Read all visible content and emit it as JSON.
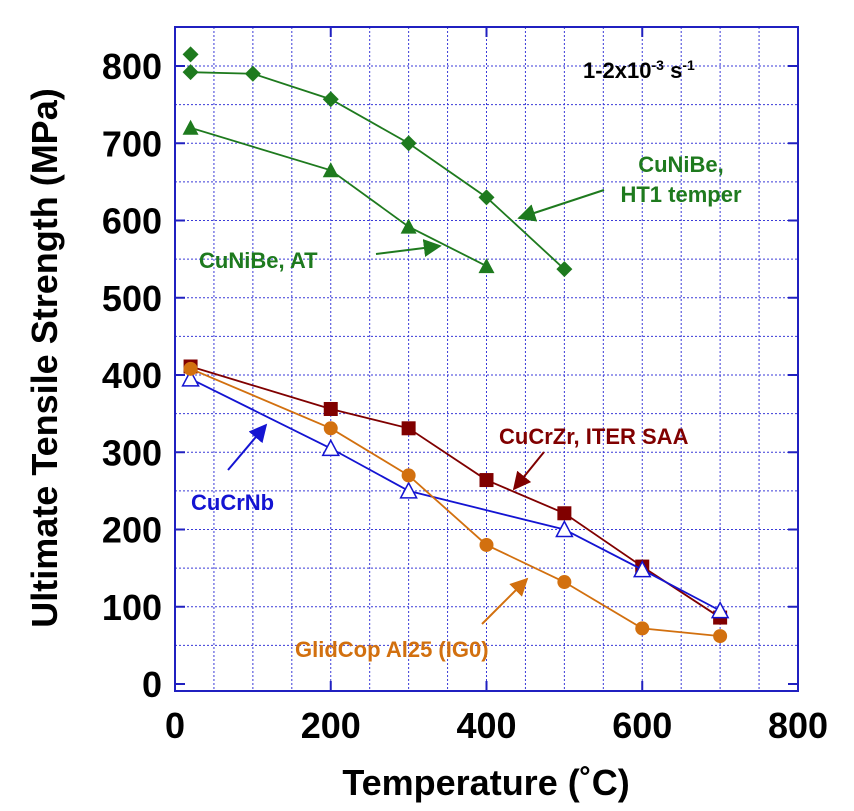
{
  "chart_data": {
    "type": "line",
    "xlabel": "Temperature (˚C)",
    "ylabel": "Ultimate Tensile Strength (MPa)",
    "xlim": [
      0,
      800
    ],
    "ylim": [
      0,
      850
    ],
    "xticks": [
      0,
      200,
      400,
      600,
      800
    ],
    "yticks": [
      0,
      100,
      200,
      300,
      400,
      500,
      600,
      700,
      800
    ],
    "grid": true,
    "annotation": {
      "text": "1-2x10",
      "exp1": "-3",
      "unit": " s",
      "exp2": "-1"
    },
    "series": [
      {
        "name": "CuNiBe, HT1 temper",
        "label_lines": [
          "CuNiBe,",
          "HT1 temper"
        ],
        "color": "#1e7a1e",
        "marker": "diamond",
        "x": [
          20,
          100,
          200,
          300,
          400,
          500
        ],
        "y": [
          792,
          790,
          757,
          700,
          630,
          537
        ],
        "extra_points": [
          {
            "x": 20,
            "y": 815
          }
        ]
      },
      {
        "name": "CuNiBe, AT",
        "label_lines": [
          "CuNiBe, AT"
        ],
        "color": "#1e7a1e",
        "marker": "triangle",
        "x": [
          20,
          200,
          300,
          400
        ],
        "y": [
          720,
          665,
          592,
          541
        ]
      },
      {
        "name": "CuCrZr, ITER SAA",
        "label_lines": [
          "CuCrZr, ITER SAA"
        ],
        "color": "#800000",
        "marker": "square",
        "x": [
          20,
          200,
          300,
          400,
          500,
          600,
          700
        ],
        "y": [
          411,
          356,
          331,
          264,
          221,
          152,
          86
        ]
      },
      {
        "name": "CuCrNb",
        "label_lines": [
          "CuCrNb"
        ],
        "color": "#1414d2",
        "marker": "open-triangle",
        "x": [
          20,
          200,
          300,
          500,
          600,
          700
        ],
        "y": [
          395,
          305,
          250,
          200,
          148,
          95
        ]
      },
      {
        "name": "GlidCop Al25 (IG0)",
        "label_lines": [
          "GlidCop Al25 (IG0)"
        ],
        "color": "#d2700f",
        "marker": "circle",
        "x": [
          20,
          200,
          300,
          400,
          500,
          600,
          700
        ],
        "y": [
          408,
          331,
          270,
          180,
          132,
          72,
          62
        ]
      }
    ]
  }
}
